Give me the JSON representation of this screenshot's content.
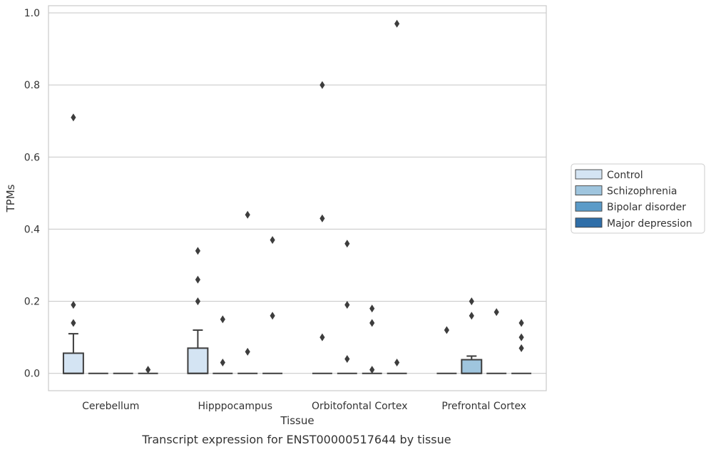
{
  "caption": "Transcript expression for ENST00000517644 by tissue",
  "chart_data": {
    "type": "box",
    "xlabel": "Tissue",
    "ylabel": "TPMs",
    "ylim": [
      -0.048,
      1.02
    ],
    "yticks": [
      0.0,
      0.2,
      0.4,
      0.6,
      0.8,
      1.0
    ],
    "ytick_labels": [
      "0.0",
      "0.2",
      "0.4",
      "0.6",
      "0.8",
      "1.0"
    ],
    "grid": "horizontal",
    "legend_position": "right",
    "categories": [
      "Cerebellum",
      "Hipppocampus",
      "Orbitofontal Cortex",
      "Prefrontal Cortex"
    ],
    "series": [
      {
        "name": "Control",
        "color": "#d4e4f3",
        "boxes": [
          {
            "q1": 0,
            "median": 0,
            "q3": 0.056,
            "whisker_low": 0,
            "whisker_high": 0.11,
            "outliers": [
              0.71,
              0.19,
              0.14
            ]
          },
          {
            "q1": 0,
            "median": 0,
            "q3": 0.07,
            "whisker_low": 0,
            "whisker_high": 0.12,
            "outliers": [
              0.34,
              0.26,
              0.2
            ]
          },
          {
            "q1": 0,
            "median": 0,
            "q3": 0,
            "whisker_low": 0,
            "whisker_high": 0,
            "outliers": [
              0.8,
              0.43,
              0.1
            ]
          },
          {
            "q1": 0,
            "median": 0,
            "q3": 0,
            "whisker_low": 0,
            "whisker_high": 0,
            "outliers": [
              0.12
            ]
          }
        ]
      },
      {
        "name": "Schizophrenia",
        "color": "#9fc5de",
        "boxes": [
          {
            "q1": 0,
            "median": 0,
            "q3": 0,
            "whisker_low": 0,
            "whisker_high": 0,
            "outliers": []
          },
          {
            "q1": 0,
            "median": 0,
            "q3": 0,
            "whisker_low": 0,
            "whisker_high": 0,
            "outliers": [
              0.15,
              0.03
            ]
          },
          {
            "q1": 0,
            "median": 0,
            "q3": 0,
            "whisker_low": 0,
            "whisker_high": 0,
            "outliers": [
              0.36,
              0.19,
              0.04
            ]
          },
          {
            "q1": 0,
            "median": 0,
            "q3": 0.038,
            "whisker_low": 0,
            "whisker_high": 0.048,
            "outliers": [
              0.2,
              0.16
            ]
          }
        ]
      },
      {
        "name": "Bipolar disorder",
        "color": "#5b9bc8",
        "boxes": [
          {
            "q1": 0,
            "median": 0,
            "q3": 0,
            "whisker_low": 0,
            "whisker_high": 0,
            "outliers": []
          },
          {
            "q1": 0,
            "median": 0,
            "q3": 0,
            "whisker_low": 0,
            "whisker_high": 0,
            "outliers": [
              0.44,
              0.06
            ]
          },
          {
            "q1": 0,
            "median": 0,
            "q3": 0,
            "whisker_low": 0,
            "whisker_high": 0,
            "outliers": [
              0.18,
              0.14,
              0.01
            ]
          },
          {
            "q1": 0,
            "median": 0,
            "q3": 0,
            "whisker_low": 0,
            "whisker_high": 0,
            "outliers": [
              0.17
            ]
          }
        ]
      },
      {
        "name": "Major depression",
        "color": "#2f6ea8",
        "boxes": [
          {
            "q1": 0,
            "median": 0,
            "q3": 0,
            "whisker_low": 0,
            "whisker_high": 0,
            "outliers": [
              0.01
            ]
          },
          {
            "q1": 0,
            "median": 0,
            "q3": 0,
            "whisker_low": 0,
            "whisker_high": 0,
            "outliers": [
              0.37,
              0.16
            ]
          },
          {
            "q1": 0,
            "median": 0,
            "q3": 0,
            "whisker_low": 0,
            "whisker_high": 0,
            "outliers": [
              0.97,
              0.03
            ]
          },
          {
            "q1": 0,
            "median": 0,
            "q3": 0,
            "whisker_low": 0,
            "whisker_high": 0,
            "outliers": [
              0.14,
              0.1,
              0.07
            ]
          }
        ]
      }
    ]
  }
}
